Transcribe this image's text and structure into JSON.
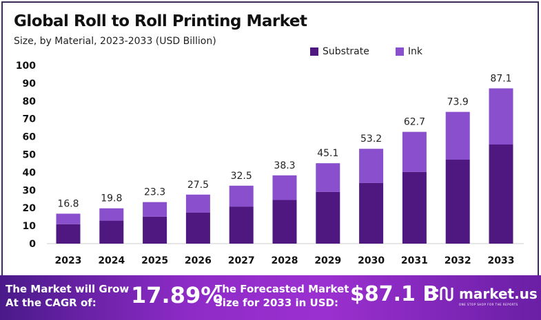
{
  "chart_data": {
    "type": "bar",
    "stacked": true,
    "title": "Global Roll to Roll Printing Market",
    "subtitle": "Size, by Material, 2023-2033 (USD Billion)",
    "xlabel": "",
    "ylabel": "",
    "ylim": [
      0,
      100
    ],
    "yticks": [
      0,
      10,
      20,
      30,
      40,
      50,
      60,
      70,
      80,
      90,
      100
    ],
    "grid": false,
    "legend_position": "top-right",
    "categories": [
      "2023",
      "2024",
      "2025",
      "2026",
      "2027",
      "2028",
      "2029",
      "2030",
      "2031",
      "2032",
      "2033"
    ],
    "series": [
      {
        "name": "Substrate",
        "color": "#4e1880",
        "values": [
          10.9,
          12.9,
          15.1,
          17.4,
          20.8,
          24.5,
          29.0,
          34.0,
          40.2,
          47.1,
          55.6
        ]
      },
      {
        "name": "Ink",
        "color": "#8a4fcc",
        "values": [
          5.9,
          6.9,
          8.2,
          10.1,
          11.7,
          13.8,
          16.1,
          19.2,
          22.5,
          26.8,
          31.5
        ]
      }
    ],
    "totals": [
      "16.8",
      "19.8",
      "23.3",
      "27.5",
      "32.5",
      "38.3",
      "45.1",
      "53.2",
      "62.7",
      "73.9",
      "87.1"
    ]
  },
  "footer": {
    "cagr_label_line1": "The Market will Grow",
    "cagr_label_line2": "At the CAGR of:",
    "cagr_value": "17.89%",
    "forecast_label_line1": "The Forecasted Market",
    "forecast_label_line2": "Size for 2033 in USD:",
    "forecast_value": "$87.1 B",
    "logo_text": "market.us",
    "logo_tagline": "ONE STOP SHOP FOR THE REPORTS"
  }
}
